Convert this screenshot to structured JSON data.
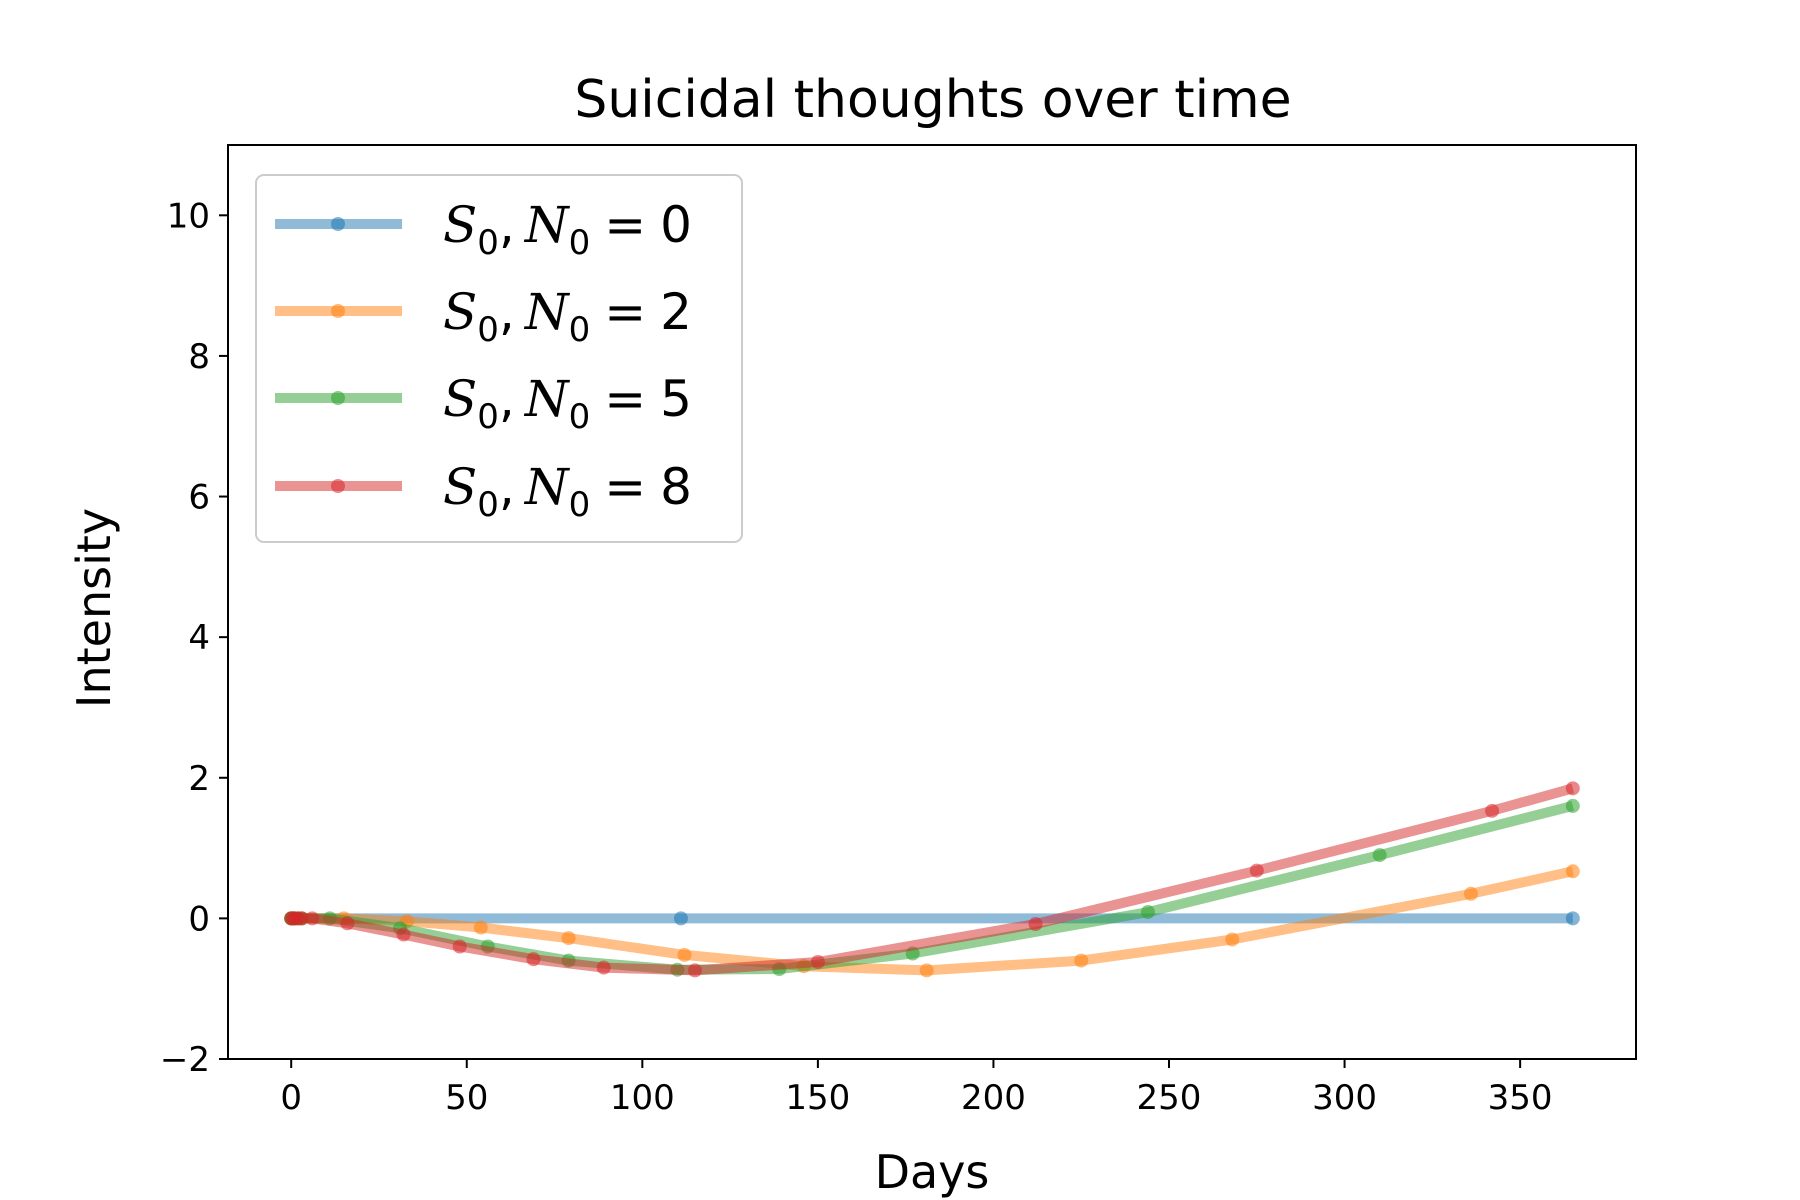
{
  "chart_data": {
    "type": "line",
    "title": "Suicidal thoughts over time",
    "xlabel": "Days",
    "ylabel": "Intensity",
    "xlim": [
      -18,
      383
    ],
    "ylim": [
      -2,
      11
    ],
    "xticks": [
      0,
      50,
      100,
      150,
      200,
      250,
      300,
      350
    ],
    "yticks": [
      -2,
      0,
      2,
      4,
      6,
      8,
      10
    ],
    "grid": false,
    "legend_position": "upper-left",
    "series": [
      {
        "name": "S0, N0 = 0",
        "label_var1": "S",
        "label_sub1": "0",
        "label_sep": ",",
        "label_var2": "N",
        "label_sub2": "0",
        "label_eq": "=",
        "label_val": "0",
        "color": "#1f77b4",
        "x": [
          0,
          0.1,
          0.5,
          1,
          111,
          365
        ],
        "y": [
          0,
          0,
          0,
          0,
          0,
          0
        ]
      },
      {
        "name": "S0, N0 = 2",
        "label_var1": "S",
        "label_sub1": "0",
        "label_sep": ",",
        "label_var2": "N",
        "label_sub2": "0",
        "label_eq": "=",
        "label_val": "2",
        "color": "#ff7f0e",
        "x": [
          0,
          0.5,
          1,
          2,
          3,
          15,
          33,
          54,
          79,
          112,
          146,
          181,
          225,
          268,
          336,
          365
        ],
        "y": [
          0,
          0,
          0,
          0,
          0,
          0,
          -0.04,
          -0.13,
          -0.28,
          -0.52,
          -0.68,
          -0.74,
          -0.6,
          -0.3,
          0.35,
          0.67
        ]
      },
      {
        "name": "S0, N0 = 5",
        "label_var1": "S",
        "label_sub1": "0",
        "label_sep": ",",
        "label_var2": "N",
        "label_sub2": "0",
        "label_eq": "=",
        "label_val": "5",
        "color": "#2ca02c",
        "x": [
          0,
          0.5,
          1,
          2,
          3,
          11,
          31,
          56,
          79,
          110,
          139,
          177,
          244,
          310,
          365
        ],
        "y": [
          0,
          0,
          0,
          0,
          0,
          0,
          -0.14,
          -0.4,
          -0.6,
          -0.73,
          -0.72,
          -0.5,
          0.09,
          0.9,
          1.6
        ]
      },
      {
        "name": "S0, N0 = 8",
        "label_var1": "S",
        "label_sub1": "0",
        "label_sep": ",",
        "label_var2": "N",
        "label_sub2": "0",
        "label_eq": "=",
        "label_val": "8",
        "color": "#d62728",
        "x": [
          0,
          0.5,
          1,
          2,
          3,
          6,
          16,
          32,
          48,
          69,
          89,
          115,
          150,
          212,
          275,
          342,
          365
        ],
        "y": [
          0,
          0,
          0,
          0,
          0,
          0,
          -0.07,
          -0.23,
          -0.4,
          -0.58,
          -0.7,
          -0.74,
          -0.62,
          -0.08,
          0.68,
          1.53,
          1.85
        ]
      }
    ]
  }
}
